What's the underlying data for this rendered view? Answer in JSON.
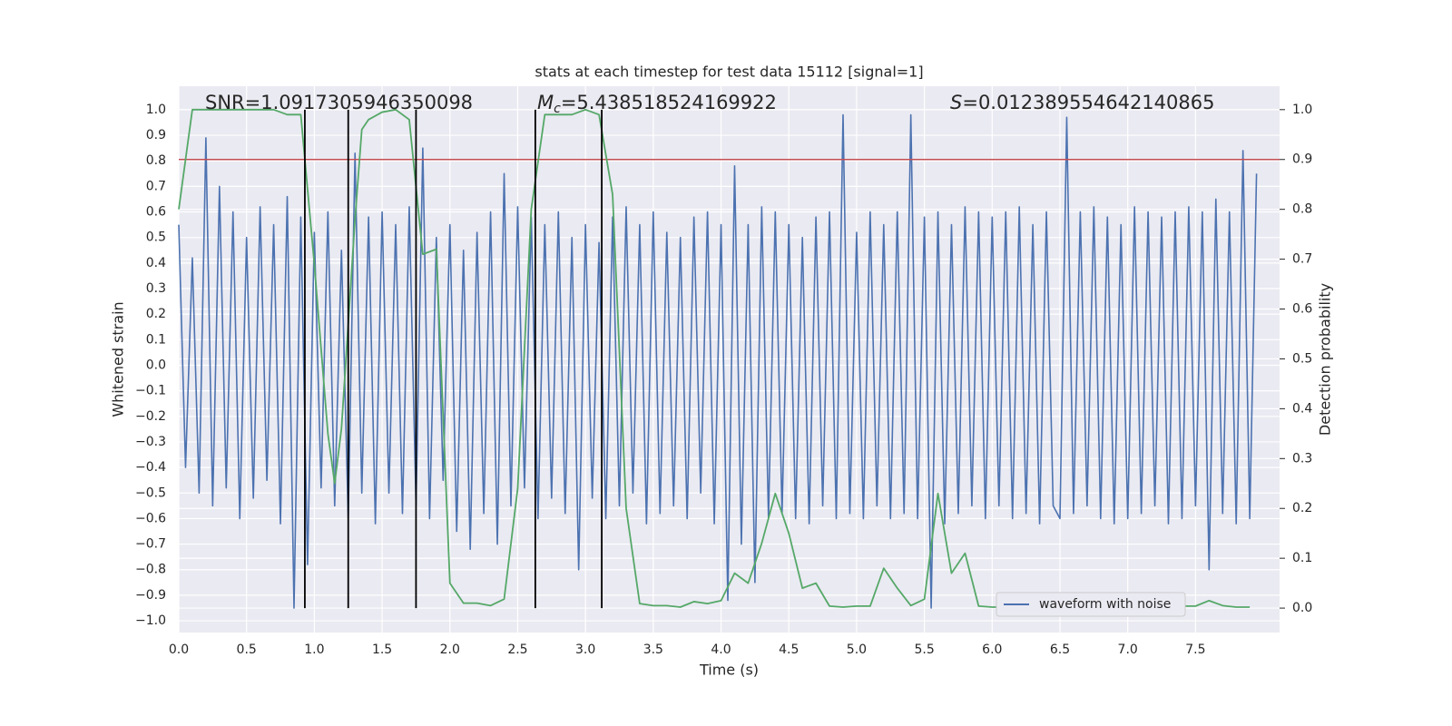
{
  "chart_data": {
    "type": "line",
    "title": "stats at each timestep for test data 15112 [signal=1]",
    "xlabel": "Time (s)",
    "ylabel": "Whitened strain",
    "y2label": "Detection probability",
    "xlim": [
      0,
      8.12
    ],
    "ylim": [
      -1.046,
      1.092
    ],
    "y2lim": [
      -0.049,
      1.047
    ],
    "grid": true,
    "background": "#eaeaf2",
    "legend": "lower right",
    "xticks": [
      {
        "value": 0,
        "label": "0.0"
      },
      {
        "value": 0.5,
        "label": "0.5"
      },
      {
        "value": 1,
        "label": "1.0"
      },
      {
        "value": 1.5,
        "label": "1.5"
      },
      {
        "value": 2,
        "label": "2.0"
      },
      {
        "value": 2.5,
        "label": "2.5"
      },
      {
        "value": 3,
        "label": "3.0"
      },
      {
        "value": 3.5,
        "label": "3.5"
      },
      {
        "value": 4,
        "label": "4.0"
      },
      {
        "value": 4.5,
        "label": "4.5"
      },
      {
        "value": 5,
        "label": "5.0"
      },
      {
        "value": 5.5,
        "label": "5.5"
      },
      {
        "value": 6,
        "label": "6.0"
      },
      {
        "value": 6.5,
        "label": "6.5"
      },
      {
        "value": 7,
        "label": "7.0"
      },
      {
        "value": 7.5,
        "label": "7.5"
      }
    ],
    "yticks": [
      {
        "value": 1,
        "label": "1.0"
      },
      {
        "value": 0.9,
        "label": "0.9"
      },
      {
        "value": 0.8,
        "label": "0.8"
      },
      {
        "value": 0.7,
        "label": "0.7"
      },
      {
        "value": 0.6,
        "label": "0.6"
      },
      {
        "value": 0.5,
        "label": "0.5"
      },
      {
        "value": 0.4,
        "label": "0.4"
      },
      {
        "value": 0.3,
        "label": "0.3"
      },
      {
        "value": 0.2,
        "label": "0.2"
      },
      {
        "value": 0.1,
        "label": "0.1"
      },
      {
        "value": 0,
        "label": "0.0"
      },
      {
        "value": -0.1,
        "label": "−0.1"
      },
      {
        "value": -0.2,
        "label": "−0.2"
      },
      {
        "value": -0.3,
        "label": "−0.3"
      },
      {
        "value": -0.4,
        "label": "−0.4"
      },
      {
        "value": -0.5,
        "label": "−0.5"
      },
      {
        "value": -0.6,
        "label": "−0.6"
      },
      {
        "value": -0.7,
        "label": "−0.7"
      },
      {
        "value": -0.8,
        "label": "−0.8"
      },
      {
        "value": -0.9,
        "label": "−0.9"
      },
      {
        "value": -1,
        "label": "−1.0"
      }
    ],
    "y2ticks": [
      {
        "value": 1,
        "label": "1.0"
      },
      {
        "value": 0.9,
        "label": "0.9"
      },
      {
        "value": 0.8,
        "label": "0.8"
      },
      {
        "value": 0.7,
        "label": "0.7"
      },
      {
        "value": 0.6,
        "label": "0.6"
      },
      {
        "value": 0.5,
        "label": "0.5"
      },
      {
        "value": 0.4,
        "label": "0.4"
      },
      {
        "value": 0.3,
        "label": "0.3"
      },
      {
        "value": 0.2,
        "label": "0.2"
      },
      {
        "value": 0.1,
        "label": "0.1"
      },
      {
        "value": 0,
        "label": "0.0"
      }
    ],
    "annotations": [
      {
        "text": "SNR=1.0917305946350098"
      },
      {
        "symbol": "M",
        "subscript": "c",
        "text": "=5.438518524169922"
      },
      {
        "symbol": "S",
        "text": "=0.012389554642140865"
      }
    ],
    "hlines": [
      {
        "value": 0.9,
        "axis": "y2",
        "color": "#c44e52"
      }
    ],
    "vlines": {
      "x": [
        0.93,
        1.25,
        1.75,
        2.63,
        3.12
      ],
      "axis": "y2",
      "from": 0,
      "to": 1,
      "color": "#000000"
    },
    "series": [
      {
        "name": "waveform with noise",
        "color": "#4c72b0",
        "x": [
          0,
          0.05,
          0.1,
          0.15,
          0.2,
          0.25,
          0.3,
          0.35,
          0.4,
          0.45,
          0.5,
          0.55,
          0.6,
          0.65,
          0.7,
          0.75,
          0.8,
          0.85,
          0.9,
          0.95,
          1,
          1.05,
          1.1,
          1.15,
          1.2,
          1.25,
          1.3,
          1.35,
          1.4,
          1.45,
          1.5,
          1.55,
          1.6,
          1.65,
          1.7,
          1.75,
          1.8,
          1.85,
          1.9,
          1.95,
          2,
          2.05,
          2.1,
          2.15,
          2.2,
          2.25,
          2.3,
          2.35,
          2.4,
          2.45,
          2.5,
          2.55,
          2.6,
          2.65,
          2.7,
          2.75,
          2.8,
          2.85,
          2.9,
          2.95,
          3,
          3.05,
          3.1,
          3.15,
          3.2,
          3.25,
          3.3,
          3.35,
          3.4,
          3.45,
          3.5,
          3.55,
          3.6,
          3.65,
          3.7,
          3.75,
          3.8,
          3.85,
          3.9,
          3.95,
          4,
          4.05,
          4.1,
          4.15,
          4.2,
          4.25,
          4.3,
          4.35,
          4.4,
          4.45,
          4.5,
          4.55,
          4.6,
          4.65,
          4.7,
          4.75,
          4.8,
          4.85,
          4.9,
          4.95,
          5,
          5.05,
          5.1,
          5.15,
          5.2,
          5.25,
          5.3,
          5.35,
          5.4,
          5.45,
          5.5,
          5.55,
          5.6,
          5.65,
          5.7,
          5.75,
          5.8,
          5.85,
          5.9,
          5.95,
          6,
          6.05,
          6.1,
          6.15,
          6.2,
          6.25,
          6.3,
          6.35,
          6.4,
          6.45,
          6.5,
          6.55,
          6.6,
          6.65,
          6.7,
          6.75,
          6.8,
          6.85,
          6.9,
          6.95,
          7,
          7.05,
          7.1,
          7.15,
          7.2,
          7.25,
          7.3,
          7.35,
          7.4,
          7.45,
          7.5,
          7.55,
          7.6,
          7.65,
          7.7,
          7.75,
          7.8,
          7.85,
          7.9,
          7.95
        ],
        "values": [
          0.55,
          -0.4,
          0.42,
          -0.5,
          0.89,
          -0.55,
          0.7,
          -0.48,
          0.6,
          -0.6,
          0.5,
          -0.52,
          0.62,
          -0.45,
          0.55,
          -0.62,
          0.66,
          -0.95,
          0.58,
          -0.78,
          0.52,
          -0.48,
          0.6,
          -0.55,
          0.45,
          -0.6,
          0.83,
          -0.5,
          0.58,
          -0.62,
          0.6,
          -0.5,
          0.55,
          -0.58,
          0.62,
          -0.55,
          0.85,
          -0.6,
          0.5,
          -0.45,
          0.55,
          -0.65,
          0.45,
          -0.72,
          0.52,
          -0.58,
          0.6,
          -0.7,
          0.75,
          -0.55,
          0.62,
          -0.48,
          0.58,
          -0.6,
          0.55,
          -0.52,
          0.6,
          -0.58,
          0.5,
          -0.8,
          0.55,
          -0.52,
          0.48,
          -0.6,
          0.58,
          -0.55,
          0.62,
          -0.5,
          0.55,
          -0.62,
          0.6,
          -0.58,
          0.52,
          -0.55,
          0.5,
          -0.6,
          0.58,
          -0.5,
          0.6,
          -0.62,
          0.55,
          -0.92,
          0.78,
          -0.7,
          0.55,
          -0.85,
          0.62,
          -0.6,
          0.6,
          -0.58,
          0.55,
          -0.6,
          0.5,
          -0.62,
          0.58,
          -0.55,
          0.6,
          -0.6,
          0.98,
          -0.58,
          0.52,
          -0.6,
          0.6,
          -0.55,
          0.55,
          -0.6,
          0.6,
          -0.58,
          0.98,
          -0.6,
          0.58,
          -0.95,
          0.6,
          -0.62,
          0.55,
          -0.58,
          0.62,
          -0.55,
          0.6,
          -0.6,
          0.58,
          -0.55,
          0.6,
          -0.6,
          0.62,
          -0.58,
          0.55,
          -0.62,
          0.6,
          -0.55,
          -0.6,
          0.97,
          -0.58,
          0.6,
          -0.55,
          0.62,
          -0.6,
          0.58,
          -0.62,
          0.55,
          -0.6,
          0.62,
          -0.58,
          0.6,
          -0.55,
          0.58,
          -0.62,
          0.6,
          -0.6,
          0.62,
          -0.55,
          0.6,
          -0.8,
          0.65,
          -0.58,
          0.6,
          -0.62,
          0.84,
          -0.6,
          0.75
        ]
      },
      {
        "axis": "y2",
        "color": "#55a868",
        "x": [
          0,
          0.1,
          0.2,
          0.3,
          0.4,
          0.5,
          0.6,
          0.7,
          0.8,
          0.9,
          1,
          1.1,
          1.15,
          1.2,
          1.3,
          1.35,
          1.4,
          1.5,
          1.6,
          1.7,
          1.8,
          1.9,
          2,
          2.1,
          2.2,
          2.3,
          2.4,
          2.5,
          2.6,
          2.7,
          2.8,
          2.9,
          3,
          3.1,
          3.2,
          3.3,
          3.4,
          3.5,
          3.6,
          3.7,
          3.8,
          3.9,
          4,
          4.1,
          4.2,
          4.3,
          4.4,
          4.5,
          4.6,
          4.7,
          4.8,
          4.9,
          5,
          5.1,
          5.2,
          5.3,
          5.4,
          5.5,
          5.6,
          5.7,
          5.8,
          5.9,
          6,
          6.1,
          6.2,
          6.3,
          6.4,
          6.5,
          6.6,
          6.7,
          6.8,
          6.9,
          7,
          7.1,
          7.2,
          7.3,
          7.4,
          7.5,
          7.6,
          7.7,
          7.8,
          7.9
        ],
        "values": [
          0.8,
          1,
          1,
          1,
          1,
          1,
          1,
          1,
          0.99,
          0.99,
          0.69,
          0.35,
          0.25,
          0.36,
          0.78,
          0.96,
          0.98,
          0.995,
          1,
          0.98,
          0.71,
          0.72,
          0.05,
          0.01,
          0.01,
          0.005,
          0.018,
          0.24,
          0.8,
          0.99,
          0.99,
          0.99,
          1,
          0.99,
          0.83,
          0.2,
          0.009,
          0.005,
          0.005,
          0.002,
          0.013,
          0.009,
          0.015,
          0.07,
          0.05,
          0.13,
          0.23,
          0.15,
          0.04,
          0.05,
          0.004,
          0.002,
          0.004,
          0.004,
          0.08,
          0.04,
          0.005,
          0.018,
          0.23,
          0.07,
          0.11,
          0.004,
          0.002,
          0.002,
          0.004,
          0.004,
          0.005,
          0.015,
          0.02,
          0.013,
          0.018,
          0.024,
          0.005,
          0.004,
          0.004,
          0.005,
          0.004,
          0.004,
          0.015,
          0.005,
          0.002,
          0.002
        ]
      }
    ]
  }
}
